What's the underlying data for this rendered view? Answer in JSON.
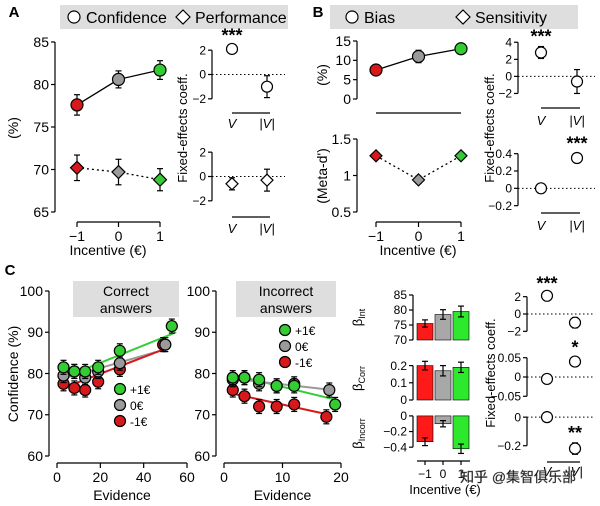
{
  "panel_labels": {
    "a": "A",
    "b": "B",
    "c": "C"
  },
  "legend_a": {
    "item1": "Confidence",
    "item2": "Performance"
  },
  "legend_b": {
    "item1": "Bias",
    "item2": "Sensitivity"
  },
  "watermark": "知乎 @集智俱乐部",
  "colors": {
    "red": "#d7191c",
    "gray": "#9a9a9a",
    "green": "#33cc33",
    "bar_red": "#ff1a1a",
    "bar_gray": "#a8a8a8",
    "bar_green": "#2ee82e",
    "legend_bg": "#dedede"
  },
  "chart_data": [
    {
      "id": "A_main",
      "type": "line",
      "ylabel": "(%)",
      "xlabel": "Incentive (€)",
      "x": [
        -1,
        0,
        1
      ],
      "xticks": [
        "−1",
        "0",
        "1"
      ],
      "ylim": [
        65,
        85
      ],
      "yticks": [
        "65",
        "70",
        "75",
        "80",
        "85"
      ],
      "series": [
        {
          "name": "Confidence",
          "values": [
            77.6,
            80.6,
            81.7
          ],
          "err": [
            1.2,
            1.0,
            1.1
          ],
          "style": "solid",
          "marker": "circle"
        },
        {
          "name": "Performance",
          "values": [
            70.2,
            69.7,
            68.8
          ],
          "err": [
            1.5,
            1.5,
            1.3
          ],
          "style": "dotted",
          "marker": "diamond"
        }
      ]
    },
    {
      "id": "A_coef_conf",
      "type": "scatter",
      "ylabel": "Fixed-effects coeff.",
      "categories": [
        "V",
        "|V|"
      ],
      "values": [
        2.1,
        -1.0
      ],
      "err": [
        0.3,
        0.9
      ],
      "ylim": [
        -3,
        3
      ],
      "yticks": [
        "−2",
        "0",
        "2"
      ],
      "marker": "circle",
      "sig": [
        "***",
        ""
      ]
    },
    {
      "id": "A_coef_perf",
      "type": "scatter",
      "categories": [
        "V",
        "|V|"
      ],
      "values": [
        -0.6,
        -0.3
      ],
      "err": [
        0.5,
        0.9
      ],
      "ylim": [
        -3,
        3
      ],
      "yticks": [
        "−2",
        "0",
        "2"
      ],
      "marker": "diamond",
      "sig": [
        "",
        ""
      ]
    },
    {
      "id": "B_bias",
      "type": "line",
      "ylabel": "(%)",
      "x": [
        -1,
        0,
        1
      ],
      "ylim": [
        0,
        15
      ],
      "yticks": [
        "0",
        "5",
        "10",
        "15"
      ],
      "series": [
        {
          "name": "Bias",
          "values": [
            7.5,
            11.0,
            13.0
          ],
          "err": [
            1.3,
            1.6,
            1.1
          ]
        }
      ]
    },
    {
      "id": "B_sens",
      "type": "line",
      "ylabel": "(Meta-d')",
      "xlabel": "Incentive (€)",
      "x": [
        -1,
        0,
        1
      ],
      "xticks": [
        "−1",
        "0",
        "1"
      ],
      "ylim": [
        0.5,
        1.5
      ],
      "yticks": [
        "0.5",
        "1",
        "1.5"
      ],
      "series": [
        {
          "name": "Sensitivity",
          "values": [
            1.27,
            0.94,
            1.27
          ],
          "err": [
            0.04,
            0.05,
            0.04
          ]
        }
      ]
    },
    {
      "id": "B_coef_bias",
      "type": "scatter",
      "ylabel": "Fixed-effects coeff.",
      "categories": [
        "V",
        "|V|"
      ],
      "values": [
        2.8,
        -0.6
      ],
      "err": [
        0.7,
        1.4
      ],
      "ylim": [
        -3,
        4.5
      ],
      "yticks": [
        "−2",
        "0",
        "2",
        "4"
      ],
      "sig": [
        "***",
        ""
      ]
    },
    {
      "id": "B_coef_sens",
      "type": "scatter",
      "categories": [
        "V",
        "|V|"
      ],
      "values": [
        0.0,
        0.35
      ],
      "err": [
        0.02,
        0.05
      ],
      "ylim": [
        -0.25,
        0.5
      ],
      "yticks": [
        "−0.2",
        "0",
        "0.2",
        "0.4"
      ],
      "sig": [
        "",
        "***"
      ]
    },
    {
      "id": "C_correct",
      "type": "scatter",
      "title": "Correct answers",
      "ylabel": "Confidence (%)",
      "xlabel": "Evidence",
      "xlim": [
        0,
        60
      ],
      "xticks": [
        "0",
        "20",
        "40",
        "60"
      ],
      "ylim": [
        60,
        100
      ],
      "yticks": [
        "60",
        "70",
        "80",
        "90",
        "100"
      ],
      "series": [
        {
          "name": "+1€",
          "x": [
            3,
            8,
            13,
            19,
            29,
            53
          ],
          "y": [
            81.5,
            80.5,
            80.5,
            81.5,
            85.5,
            91.5
          ],
          "fit": [
            [
              3,
              79.0
            ],
            [
              55,
              90.0
            ]
          ]
        },
        {
          "name": "0€",
          "x": [
            3,
            8,
            13,
            19,
            29,
            50
          ],
          "y": [
            79.5,
            80.5,
            79.0,
            80.5,
            82.5,
            87.0
          ],
          "fit": [
            [
              3,
              78.8
            ],
            [
              51,
              86.0
            ]
          ]
        },
        {
          "name": "-1€",
          "x": [
            3,
            8,
            13,
            19,
            29,
            49
          ],
          "y": [
            77.5,
            76.5,
            76.0,
            78.0,
            81.0,
            87.0
          ],
          "fit": [
            [
              3,
              76.5
            ],
            [
              50,
              86.0
            ]
          ]
        }
      ]
    },
    {
      "id": "C_incorrect",
      "type": "scatter",
      "title": "Incorrect answers",
      "xlabel": "Evidence",
      "xlim": [
        0,
        20
      ],
      "xticks": [
        "0",
        "10",
        "20"
      ],
      "ylim": [
        60,
        100
      ],
      "yticks": [
        "60",
        "70",
        "80",
        "90",
        "100"
      ],
      "series": [
        {
          "name": "+1€",
          "x": [
            1.5,
            3.5,
            6,
            9,
            12,
            19
          ],
          "y": [
            79.0,
            79.0,
            78.5,
            77.0,
            77.0,
            72.5
          ],
          "fit": [
            [
              1.2,
              79.8
            ],
            [
              19.5,
              73.5
            ]
          ]
        },
        {
          "name": "0€",
          "x": [
            1.5,
            3.5,
            6,
            9,
            12,
            18
          ],
          "y": [
            78.5,
            79.0,
            77.5,
            77.0,
            77.5,
            76.0
          ],
          "fit": [
            [
              1.2,
              78.8
            ],
            [
              18.5,
              76.0
            ]
          ]
        },
        {
          "name": "-1€",
          "x": [
            1.5,
            3.5,
            6,
            9,
            12,
            17.5
          ],
          "y": [
            76.0,
            74.5,
            72.0,
            72.0,
            72.5,
            69.5
          ],
          "fit": [
            [
              1.2,
              75.2
            ],
            [
              18,
              70.0
            ]
          ]
        }
      ]
    },
    {
      "id": "C_bars_int",
      "type": "bar",
      "ylabel": "βInt",
      "categories": [
        "−1",
        "0",
        "1"
      ],
      "values": [
        75.5,
        78.5,
        79.5
      ],
      "err": [
        1.2,
        1.6,
        1.8
      ],
      "ylim": [
        70,
        85
      ],
      "yticks": [
        "70",
        "75",
        "80",
        "85"
      ]
    },
    {
      "id": "C_bars_corr",
      "type": "bar",
      "ylabel": "βCorr",
      "categories": [
        "−1",
        "0",
        "1"
      ],
      "values": [
        0.2,
        0.17,
        0.19
      ],
      "err": [
        0.025,
        0.03,
        0.03
      ],
      "ylim": [
        0,
        0.25
      ],
      "yticks": [
        "0",
        "0.1",
        "0.2"
      ]
    },
    {
      "id": "C_bars_incorr",
      "type": "bar",
      "ylabel": "βIncorr",
      "xlabel": "Incentive (€)",
      "xticks": [
        "−1",
        "0",
        "1"
      ],
      "categories": [
        "−1",
        "0",
        "1"
      ],
      "values": [
        -0.33,
        -0.1,
        -0.42
      ],
      "err": [
        0.05,
        0.04,
        0.06
      ],
      "ylim": [
        -0.5,
        0.05
      ],
      "yticks": [
        "−0.4",
        "−0.2",
        "0"
      ]
    },
    {
      "id": "C_coef_int",
      "type": "scatter",
      "ylabel": "Fixed-effects coeff.",
      "categories": [
        "V",
        "|V|"
      ],
      "values": [
        2.1,
        -1.0
      ],
      "err": [
        0.25,
        0.6
      ],
      "ylim": [
        -3,
        3
      ],
      "yticks": [
        "−2",
        "0",
        "2"
      ],
      "sig": [
        "***",
        ""
      ]
    },
    {
      "id": "C_coef_corr",
      "type": "scatter",
      "categories": [
        "V",
        "|V|"
      ],
      "values": [
        -0.005,
        0.04
      ],
      "err": [
        0.006,
        0.01
      ],
      "ylim": [
        -0.07,
        0.07
      ],
      "yticks": [
        "−0.05",
        "0",
        "0.05"
      ],
      "sig": [
        "",
        "*"
      ]
    },
    {
      "id": "C_coef_incorr",
      "type": "scatter",
      "xlabel": "",
      "categories": [
        "V",
        "|V|"
      ],
      "values": [
        0.0,
        -0.22
      ],
      "err": [
        0.015,
        0.04
      ],
      "ylim": [
        -0.3,
        0.05
      ],
      "yticks": [
        "−0.2",
        "0"
      ],
      "sig": [
        "",
        "**"
      ]
    }
  ]
}
